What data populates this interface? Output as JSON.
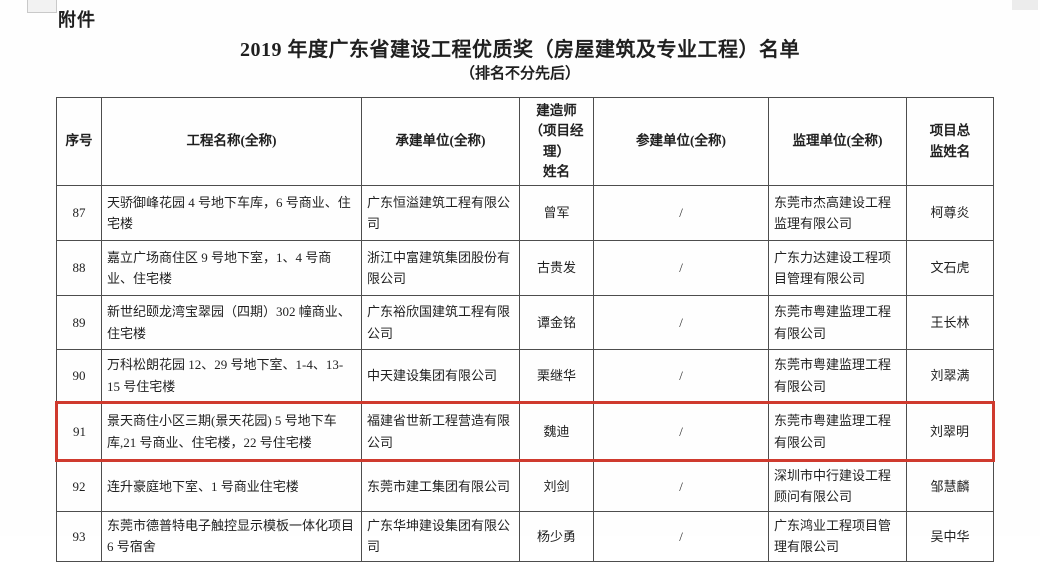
{
  "page": {
    "attachment_label": "附件",
    "title": "2019 年度广东省建设工程优质奖（房屋建筑及专业工程）名单",
    "subtitle": "（排名不分先后）"
  },
  "table": {
    "headers": [
      "序号",
      "工程名称(全称)",
      "承建单位(全称)",
      "建造师\n（项目经理）\n姓名",
      "参建单位(全称)",
      "监理单位(全称)",
      "项目总\n监姓名"
    ],
    "highlighted_row_no": "91",
    "highlight_color": "#cf3a2e",
    "rows": [
      {
        "no": "87",
        "project": "天骄御峰花园 4 号地下车库，6 号商业、住宅楼",
        "contractor": "广东恒溢建筑工程有限公司",
        "builder": "曾军",
        "participant": "/",
        "supervisor": "东莞市杰高建设工程监理有限公司",
        "director": "柯尊炎"
      },
      {
        "no": "88",
        "project": "嘉立广场商住区 9 号地下室，1、4 号商业、住宅楼",
        "contractor": "浙江中富建筑集团股份有限公司",
        "builder": "古贵发",
        "participant": "/",
        "supervisor": "广东力达建设工程项目管理有限公司",
        "director": "文石虎"
      },
      {
        "no": "89",
        "project": "新世纪颐龙湾宝翠园（四期）302 幢商业、住宅楼",
        "contractor": "广东裕欣国建筑工程有限公司",
        "builder": "谭金铭",
        "participant": "/",
        "supervisor": "东莞市粤建监理工程有限公司",
        "director": "王长林"
      },
      {
        "no": "90",
        "project": "万科松朗花园 12、29 号地下室、1-4、13-15 号住宅楼",
        "contractor": "中天建设集团有限公司",
        "builder": "栗继华",
        "participant": "/",
        "supervisor": "东莞市粤建监理工程有限公司",
        "director": "刘翠满"
      },
      {
        "no": "91",
        "project": "景天商住小区三期(景天花园) 5 号地下车库,21 号商业、住宅楼，22 号住宅楼",
        "contractor": "福建省世新工程营造有限公司",
        "builder": "魏迪",
        "participant": "/",
        "supervisor": "东莞市粤建监理工程有限公司",
        "director": "刘翠明"
      },
      {
        "no": "92",
        "project": "连升豪庭地下室、1 号商业住宅楼",
        "contractor": "东莞市建工集团有限公司",
        "builder": "刘剑",
        "participant": "/",
        "supervisor": "深圳市中行建设工程顾问有限公司",
        "director": "邹慧麟"
      },
      {
        "no": "93",
        "project": "东莞市德普特电子触控显示模板一体化项目 6 号宿舍",
        "contractor": "广东华坤建设集团有限公司",
        "builder": "杨少勇",
        "participant": "/",
        "supervisor": "广东鸿业工程项目管理有限公司",
        "director": "吴中华"
      }
    ]
  }
}
